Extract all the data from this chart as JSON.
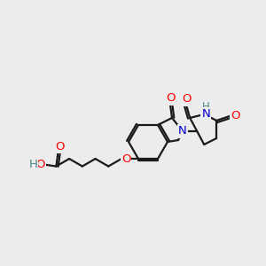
{
  "background_color": "#ececec",
  "bond_color": "#1a1a1a",
  "bond_width": 1.6,
  "atom_colors": {
    "O": "#ff0000",
    "N": "#0000cc",
    "H": "#4a8888",
    "C": "#1a1a1a"
  },
  "font_size": 9.5,
  "fig_width": 3.0,
  "fig_height": 3.0,
  "dpi": 100
}
